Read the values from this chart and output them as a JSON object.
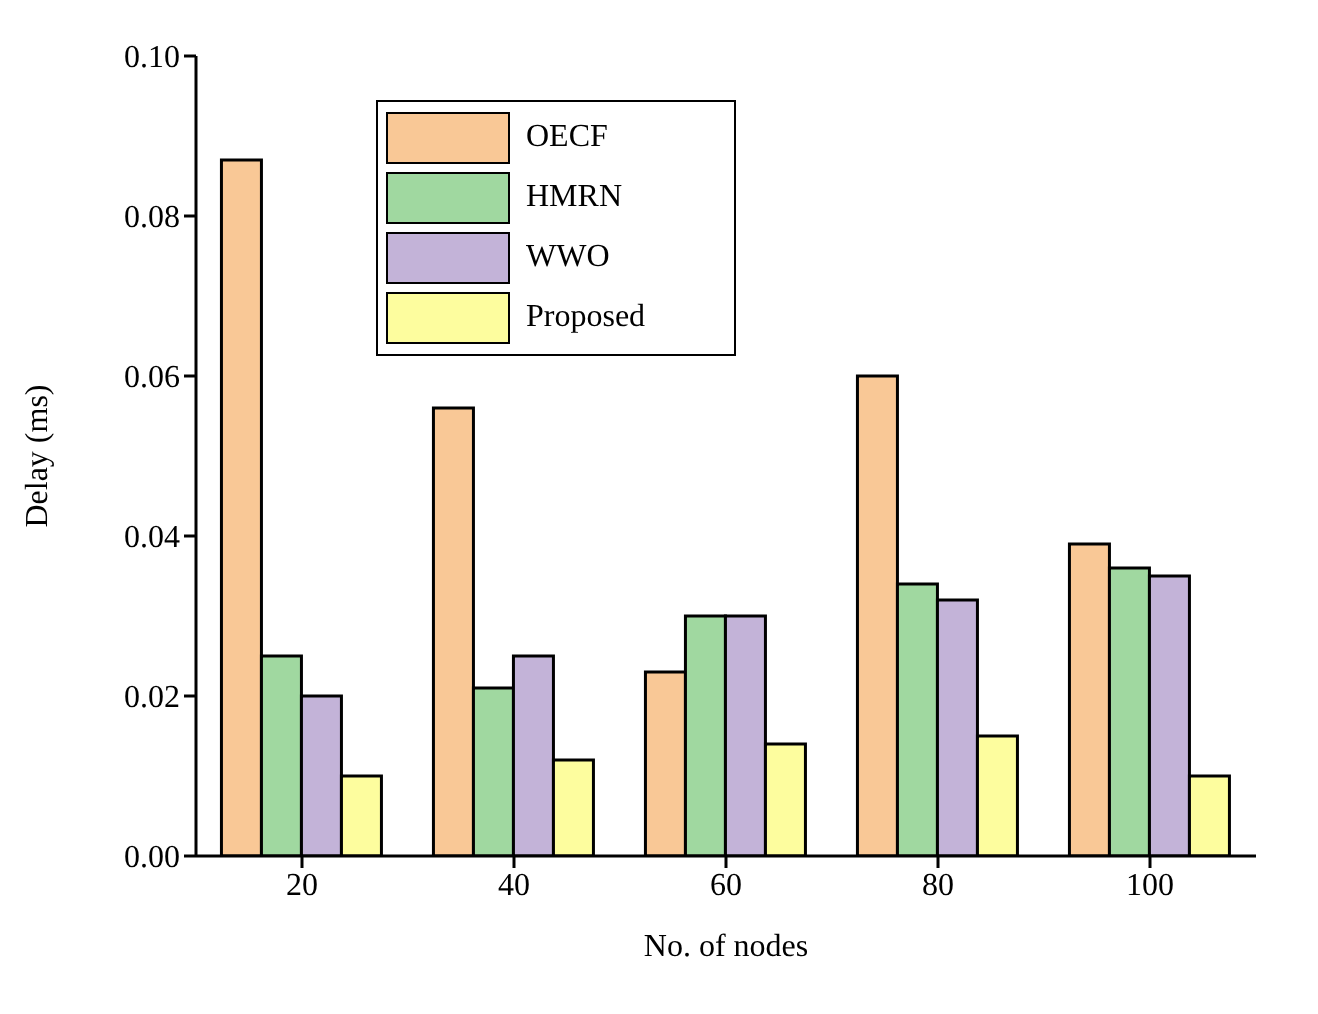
{
  "chart_data": {
    "type": "bar",
    "xlabel": "No. of nodes",
    "ylabel": "Delay (ms)",
    "categories": [
      "20",
      "40",
      "60",
      "80",
      "100"
    ],
    "series": [
      {
        "name": "OECF",
        "color": "#f9c896",
        "values": [
          0.087,
          0.056,
          0.023,
          0.06,
          0.039
        ]
      },
      {
        "name": "HMRN",
        "color": "#a0d8a0",
        "values": [
          0.025,
          0.021,
          0.03,
          0.034,
          0.036
        ]
      },
      {
        "name": "WWO",
        "color": "#c3b3d8",
        "values": [
          0.02,
          0.025,
          0.03,
          0.032,
          0.035
        ]
      },
      {
        "name": "Proposed",
        "color": "#fdfd9e",
        "values": [
          0.01,
          0.012,
          0.014,
          0.015,
          0.01
        ]
      }
    ],
    "ylim": [
      0,
      0.1
    ],
    "yticks": [
      {
        "value": 0,
        "label": "0.00"
      },
      {
        "value": 0.02,
        "label": "0.02"
      },
      {
        "value": 0.04,
        "label": "0.04"
      },
      {
        "value": 0.06,
        "label": "0.06"
      },
      {
        "value": 0.08,
        "label": "0.08"
      },
      {
        "value": 0.1,
        "label": "0.10"
      }
    ],
    "grid": false,
    "legend": "top left"
  }
}
